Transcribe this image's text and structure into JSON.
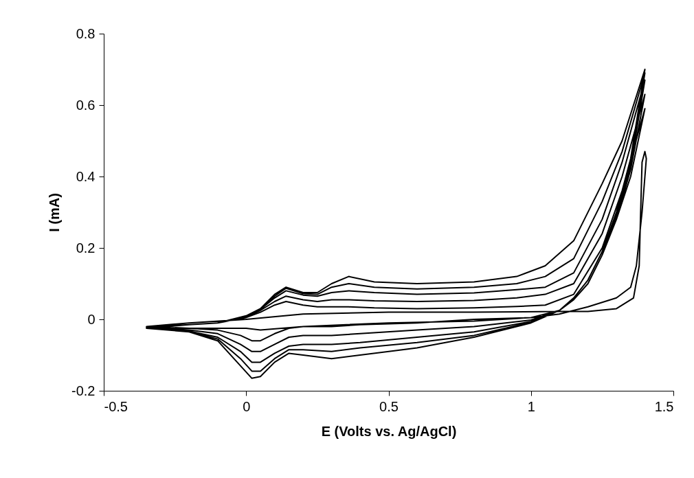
{
  "chart_data": {
    "type": "line",
    "xlabel": "E (Volts vs. Ag/AgCl)",
    "ylabel": "I (mA)",
    "xlim": [
      -0.5,
      1.5
    ],
    "xticks": [
      -0.5,
      0,
      0.5,
      1,
      1.5
    ],
    "ylim": [
      -0.2,
      0.8
    ],
    "yticks": [
      -0.2,
      0,
      0.2,
      0.4,
      0.6,
      0.8
    ],
    "line_style": "solid",
    "series": [
      {
        "color": "#000000",
        "x": [
          -0.35,
          -0.2,
          0,
          0.2,
          0.5,
          0.8,
          1.1,
          1.2,
          1.3,
          1.36,
          1.38,
          1.385,
          1.39,
          1.4,
          1.405,
          1.39,
          1.37,
          1.35,
          1.3,
          1.2,
          1.1,
          1.0,
          0.8,
          0.5,
          0.2,
          0.05,
          0,
          -0.2,
          -0.35,
          -0.2,
          -0.1,
          0,
          0.05,
          0.1,
          0.14,
          0.2,
          0.25,
          0.3,
          0.36,
          0.45,
          0.6,
          0.8,
          0.95,
          1.05,
          1.15,
          1.25,
          1.32,
          1.4,
          1.35,
          1.3,
          1.25,
          1.2,
          1.15,
          1.1,
          1.0,
          0.8,
          0.6,
          0.4,
          0.3,
          0.2,
          0.15,
          0.1,
          0.05,
          0.02,
          -0.02,
          -0.1,
          -0.2,
          -0.35,
          -0.2,
          -0.1,
          0,
          0.05,
          0.1,
          0.14,
          0.2,
          0.25,
          0.3,
          0.36,
          0.45,
          0.6,
          0.8,
          0.95,
          1.05,
          1.15,
          1.25,
          1.32,
          1.4,
          1.35,
          1.3,
          1.25,
          1.2,
          1.15,
          1.1,
          1.0,
          0.8,
          0.6,
          0.4,
          0.3,
          0.2,
          0.15,
          0.1,
          0.05,
          0.02,
          -0.02,
          -0.1,
          -0.2,
          -0.35,
          -0.2,
          -0.1,
          0,
          0.05,
          0.1,
          0.14,
          0.2,
          0.25,
          0.3,
          0.36,
          0.45,
          0.6,
          0.8,
          0.95,
          1.05,
          1.15,
          1.25,
          1.32,
          1.4,
          1.35,
          1.3,
          1.25,
          1.2,
          1.15,
          1.1,
          1.0,
          0.8,
          0.6,
          0.4,
          0.3,
          0.2,
          0.15,
          0.1,
          0.05,
          0.02,
          -0.02,
          -0.1,
          -0.2,
          -0.35,
          -0.2,
          -0.1,
          0,
          0.05,
          0.1,
          0.14,
          0.2,
          0.25,
          0.3,
          0.36,
          0.45,
          0.6,
          0.8,
          0.95,
          1.05,
          1.15,
          1.25,
          1.32,
          1.4,
          1.35,
          1.3,
          1.25,
          1.2,
          1.15,
          1.1,
          1.0,
          0.8,
          0.6,
          0.4,
          0.3,
          0.2,
          0.15,
          0.1,
          0.05,
          0.02,
          -0.02,
          -0.1,
          -0.2,
          -0.35,
          -0.2,
          -0.1,
          0,
          0.05,
          0.1,
          0.14,
          0.2,
          0.25,
          0.3,
          0.36,
          0.45,
          0.6,
          0.8,
          0.95,
          1.05,
          1.15,
          1.25,
          1.32,
          1.4,
          1.35,
          1.3,
          1.25,
          1.2,
          1.15,
          1.1,
          1.0,
          0.8,
          0.6,
          0.4,
          0.3,
          0.2,
          0.15,
          0.1,
          0.05,
          0.02,
          -0.02,
          -0.1,
          -0.2,
          -0.35
        ],
        "values": [
          -0.02,
          -0.01,
          0.0,
          0.015,
          0.02,
          0.02,
          0.022,
          0.022,
          0.03,
          0.06,
          0.15,
          0.3,
          0.44,
          0.47,
          0.45,
          0.3,
          0.15,
          0.09,
          0.06,
          0.035,
          0.015,
          0.005,
          -0.005,
          -0.01,
          -0.02,
          -0.03,
          -0.025,
          -0.025,
          -0.025,
          -0.015,
          -0.01,
          0.005,
          0.02,
          0.04,
          0.05,
          0.04,
          0.035,
          0.035,
          0.035,
          0.032,
          0.03,
          0.032,
          0.036,
          0.04,
          0.07,
          0.2,
          0.36,
          0.59,
          0.4,
          0.28,
          0.18,
          0.1,
          0.055,
          0.025,
          0.005,
          0.0,
          -0.01,
          -0.015,
          -0.02,
          -0.02,
          -0.025,
          -0.04,
          -0.06,
          -0.06,
          -0.045,
          -0.03,
          -0.025,
          -0.02,
          -0.015,
          -0.01,
          0.007,
          0.025,
          0.05,
          0.065,
          0.055,
          0.05,
          0.055,
          0.055,
          0.052,
          0.05,
          0.053,
          0.06,
          0.07,
          0.1,
          0.24,
          0.4,
          0.63,
          0.42,
          0.28,
          0.18,
          0.1,
          0.055,
          0.025,
          -0.002,
          -0.02,
          -0.03,
          -0.04,
          -0.045,
          -0.045,
          -0.05,
          -0.07,
          -0.09,
          -0.09,
          -0.07,
          -0.04,
          -0.03,
          -0.022,
          -0.015,
          -0.01,
          0.008,
          0.028,
          0.06,
          0.08,
          0.068,
          0.065,
          0.075,
          0.08,
          0.075,
          0.07,
          0.074,
          0.083,
          0.09,
          0.13,
          0.28,
          0.44,
          0.67,
          0.43,
          0.28,
          0.18,
          0.1,
          0.055,
          0.025,
          -0.006,
          -0.035,
          -0.05,
          -0.065,
          -0.07,
          -0.07,
          -0.075,
          -0.095,
          -0.12,
          -0.12,
          -0.09,
          -0.05,
          -0.033,
          -0.024,
          -0.015,
          -0.01,
          0.009,
          0.03,
          0.065,
          0.087,
          0.072,
          0.07,
          0.09,
          0.1,
          0.09,
          0.085,
          0.09,
          0.1,
          0.12,
          0.17,
          0.33,
          0.47,
          0.69,
          0.44,
          0.29,
          0.18,
          0.1,
          0.055,
          0.025,
          -0.008,
          -0.045,
          -0.065,
          -0.08,
          -0.09,
          -0.085,
          -0.085,
          -0.11,
          -0.145,
          -0.145,
          -0.11,
          -0.055,
          -0.035,
          -0.025,
          -0.015,
          -0.01,
          0.01,
          0.03,
          0.07,
          0.09,
          0.075,
          0.075,
          0.1,
          0.12,
          0.105,
          0.1,
          0.105,
          0.12,
          0.15,
          0.22,
          0.38,
          0.5,
          0.7,
          0.45,
          0.3,
          0.19,
          0.11,
          0.06,
          0.025,
          -0.01,
          -0.05,
          -0.08,
          -0.1,
          -0.11,
          -0.1,
          -0.095,
          -0.12,
          -0.16,
          -0.165,
          -0.13,
          -0.06,
          -0.035,
          -0.025
        ]
      }
    ]
  }
}
